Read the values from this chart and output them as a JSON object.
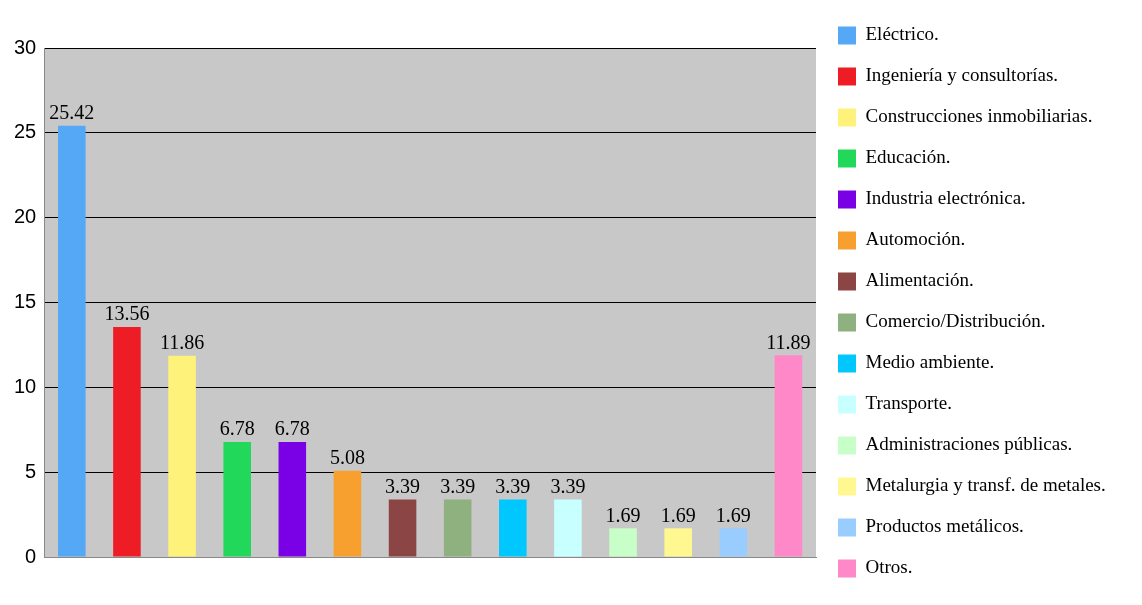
{
  "chart_data": {
    "type": "bar",
    "categories": [
      null,
      null,
      null,
      null,
      null,
      null,
      null,
      null,
      null,
      null,
      null,
      null,
      null,
      null
    ],
    "series": [
      {
        "name": "Eléctrico.",
        "color": "#55a8f5",
        "values": [
          25.42,
          null,
          null,
          null,
          null,
          null,
          null,
          null,
          null,
          null,
          null,
          null,
          null,
          null
        ]
      },
      {
        "name": "Ingeniería y consultorías.",
        "color": "#ee1c25",
        "values": [
          null,
          13.56,
          null,
          null,
          null,
          null,
          null,
          null,
          null,
          null,
          null,
          null,
          null,
          null
        ]
      },
      {
        "name": "Construcciones inmobiliarias.",
        "color": "#fff27a",
        "values": [
          null,
          null,
          11.86,
          null,
          null,
          null,
          null,
          null,
          null,
          null,
          null,
          null,
          null,
          null
        ]
      },
      {
        "name": "Educación.",
        "color": "#22d85a",
        "values": [
          null,
          null,
          null,
          6.78,
          null,
          null,
          null,
          null,
          null,
          null,
          null,
          null,
          null,
          null
        ]
      },
      {
        "name": "Industria electrónica.",
        "color": "#7a00e6",
        "values": [
          null,
          null,
          null,
          null,
          6.78,
          null,
          null,
          null,
          null,
          null,
          null,
          null,
          null,
          null
        ]
      },
      {
        "name": "Automoción.",
        "color": "#f7a030",
        "values": [
          null,
          null,
          null,
          null,
          null,
          5.08,
          null,
          null,
          null,
          null,
          null,
          null,
          null,
          null
        ]
      },
      {
        "name": "Alimentación.",
        "color": "#8b4545",
        "values": [
          null,
          null,
          null,
          null,
          null,
          null,
          3.39,
          null,
          null,
          null,
          null,
          null,
          null,
          null
        ]
      },
      {
        "name": "Comercio/Distribución.",
        "color": "#8fb07f",
        "values": [
          null,
          null,
          null,
          null,
          null,
          null,
          null,
          3.39,
          null,
          null,
          null,
          null,
          null,
          null
        ]
      },
      {
        "name": "Medio ambiente.",
        "color": "#00c8ff",
        "values": [
          null,
          null,
          null,
          null,
          null,
          null,
          null,
          null,
          3.39,
          null,
          null,
          null,
          null,
          null
        ]
      },
      {
        "name": "Transporte.",
        "color": "#c8ffff",
        "values": [
          null,
          null,
          null,
          null,
          null,
          null,
          null,
          null,
          null,
          3.39,
          null,
          null,
          null,
          null
        ]
      },
      {
        "name": "Administraciones públicas.",
        "color": "#c8ffc8",
        "values": [
          null,
          null,
          null,
          null,
          null,
          null,
          null,
          null,
          null,
          null,
          1.69,
          null,
          null,
          null
        ]
      },
      {
        "name": "Metalurgia y transf. de metales.",
        "color": "#fff890",
        "values": [
          null,
          null,
          null,
          null,
          null,
          null,
          null,
          null,
          null,
          null,
          null,
          1.69,
          null,
          null
        ]
      },
      {
        "name": "Productos metálicos.",
        "color": "#99ccff",
        "values": [
          null,
          null,
          null,
          null,
          null,
          null,
          null,
          null,
          null,
          null,
          null,
          null,
          1.69,
          null
        ]
      },
      {
        "name": "Otros.",
        "color": "#ff88c8",
        "values": [
          null,
          null,
          null,
          null,
          null,
          null,
          null,
          null,
          null,
          null,
          null,
          null,
          null,
          11.89
        ]
      }
    ],
    "ylim": [
      0,
      30
    ],
    "yticks": [
      0,
      5,
      10,
      15,
      20,
      25,
      30
    ],
    "grid": "y",
    "legend": "right",
    "tick_labels": "y",
    "data_labels": true
  }
}
